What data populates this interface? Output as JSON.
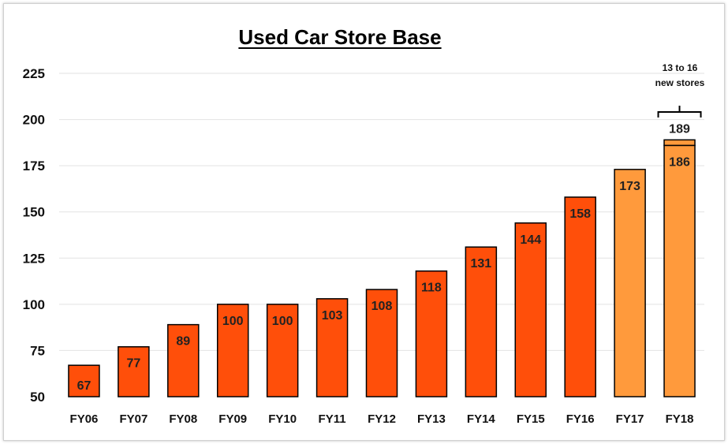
{
  "chart_data": {
    "type": "bar",
    "title": "Used Car Store Base",
    "xlabel": "",
    "ylabel": "",
    "ylim": [
      50,
      225
    ],
    "yticks": [
      50,
      75,
      100,
      125,
      150,
      175,
      200,
      225
    ],
    "grid": true,
    "categories": [
      "FY06",
      "FY07",
      "FY08",
      "FY09",
      "FY10",
      "FY11",
      "FY12",
      "FY13",
      "FY14",
      "FY15",
      "FY16",
      "FY17",
      "FY18"
    ],
    "values": [
      67,
      77,
      89,
      100,
      100,
      103,
      108,
      118,
      131,
      144,
      158,
      173,
      186
    ],
    "value_labels": [
      "67",
      "77",
      "89",
      "100",
      "100",
      "103",
      "108",
      "118",
      "131",
      "144",
      "158",
      "173",
      "186"
    ],
    "highlight_categories": [
      "FY17",
      "FY18"
    ],
    "stacked_top": {
      "category": "FY18",
      "base": 186,
      "top": 189,
      "label": "189"
    },
    "annotation": {
      "line1": "13 to 16",
      "line2": "new stores",
      "category": "FY18"
    },
    "colors": {
      "primary": "#FF4F0A",
      "highlight": "#FF9A3C",
      "outline": "#000000",
      "grid": "#e2e2e2"
    }
  }
}
